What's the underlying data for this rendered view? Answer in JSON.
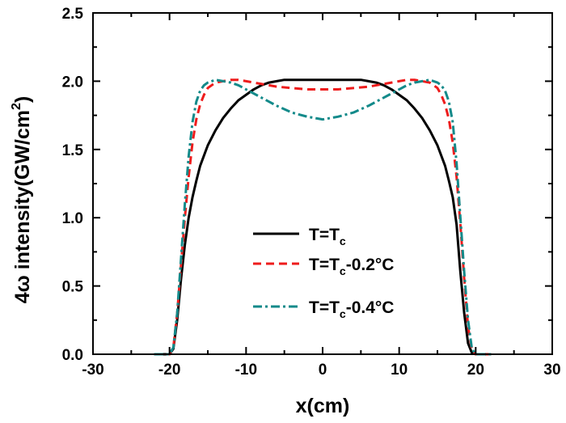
{
  "chart_data": {
    "type": "line",
    "xlabel": "x(cm)",
    "ylabel_parts": {
      "prefix": "4",
      "omega": "ω",
      "middle": " intensity(GW/cm",
      "superscript": "2",
      "suffix": ")"
    },
    "xlim": [
      -30,
      30
    ],
    "ylim": [
      0,
      2.5
    ],
    "xticks": [
      -30,
      -20,
      -10,
      0,
      10,
      20,
      30
    ],
    "yticks": [
      0.0,
      0.5,
      1.0,
      1.5,
      2.0,
      2.5
    ],
    "xtick_labels": [
      "-30",
      "-20",
      "-10",
      "0",
      "10",
      "20",
      "30"
    ],
    "ytick_labels": [
      "0.0",
      "0.5",
      "1.0",
      "1.5",
      "2.0",
      "2.5"
    ],
    "grid": false,
    "legend_position": "center-right",
    "series": [
      {
        "legend": {
          "base": "T=T",
          "sub": "c",
          "tail": ""
        },
        "color": "#000000",
        "dash": "solid",
        "x": [
          -22,
          -20,
          -19.5,
          -19,
          -18.5,
          -18,
          -17.5,
          -17,
          -16.5,
          -16,
          -15,
          -14,
          -13,
          -12,
          -11,
          -10,
          -9,
          -8,
          -7,
          -6,
          -5,
          -4,
          -3,
          -2,
          -1,
          0,
          1,
          2,
          3,
          4,
          5,
          6,
          7,
          8,
          9,
          10,
          11,
          12,
          13,
          14,
          15,
          16,
          16.5,
          17,
          17.5,
          18,
          18.5,
          19,
          19.5,
          20,
          22
        ],
        "y": [
          0,
          0,
          0.04,
          0.25,
          0.55,
          0.8,
          1.0,
          1.15,
          1.27,
          1.38,
          1.53,
          1.64,
          1.73,
          1.8,
          1.86,
          1.9,
          1.94,
          1.97,
          1.99,
          2.0,
          2.01,
          2.01,
          2.01,
          2.01,
          2.01,
          2.01,
          2.01,
          2.01,
          2.01,
          2.01,
          2.01,
          2.0,
          1.99,
          1.97,
          1.94,
          1.9,
          1.86,
          1.8,
          1.73,
          1.64,
          1.53,
          1.38,
          1.27,
          1.15,
          0.95,
          0.6,
          0.3,
          0.08,
          0.01,
          0,
          0
        ]
      },
      {
        "legend": {
          "base": "T=T",
          "sub": "c",
          "tail": "-0.2°C"
        },
        "color": "#ee1c1c",
        "dash": "dashed",
        "x": [
          -22,
          -20,
          -19.5,
          -19,
          -18.5,
          -18,
          -17.5,
          -17,
          -16.5,
          -16,
          -15.5,
          -15,
          -14,
          -13,
          -12,
          -11,
          -10,
          -9,
          -8,
          -6,
          -4,
          -2,
          0,
          2,
          4,
          6,
          8,
          9,
          10,
          11,
          12,
          13,
          14,
          15,
          15.5,
          16,
          16.5,
          17,
          17.5,
          18,
          18.5,
          19,
          19.5,
          20,
          22
        ],
        "y": [
          0,
          0,
          0.05,
          0.3,
          0.65,
          1.0,
          1.3,
          1.55,
          1.72,
          1.83,
          1.9,
          1.95,
          1.99,
          2.0,
          2.01,
          2.01,
          2.0,
          1.99,
          1.98,
          1.96,
          1.95,
          1.94,
          1.94,
          1.94,
          1.95,
          1.96,
          1.98,
          1.99,
          2.0,
          2.01,
          2.01,
          2.0,
          1.99,
          1.95,
          1.9,
          1.83,
          1.72,
          1.55,
          1.3,
          0.95,
          0.55,
          0.2,
          0.03,
          0,
          0
        ]
      },
      {
        "legend": {
          "base": "T=T",
          "sub": "c",
          "tail": "-0.4°C"
        },
        "color": "#138a8a",
        "dash": "dashdot",
        "x": [
          -22,
          -20,
          -19.5,
          -19,
          -18.5,
          -18,
          -17.5,
          -17,
          -16.5,
          -16,
          -15.5,
          -15,
          -14.5,
          -14,
          -13,
          -12,
          -11,
          -10,
          -8,
          -6,
          -4,
          -2,
          0,
          2,
          4,
          6,
          8,
          10,
          11,
          12,
          13,
          14,
          14.5,
          15,
          15.5,
          16,
          16.5,
          17,
          17.5,
          18,
          18.5,
          19,
          19.5,
          20,
          22
        ],
        "y": [
          0,
          0,
          0.05,
          0.3,
          0.7,
          1.1,
          1.45,
          1.7,
          1.85,
          1.93,
          1.97,
          1.99,
          2.0,
          2.01,
          2.0,
          1.99,
          1.97,
          1.94,
          1.88,
          1.82,
          1.77,
          1.74,
          1.72,
          1.74,
          1.77,
          1.82,
          1.88,
          1.94,
          1.97,
          1.99,
          2.0,
          2.01,
          2.0,
          1.99,
          1.97,
          1.93,
          1.85,
          1.7,
          1.4,
          1.0,
          0.6,
          0.25,
          0.04,
          0,
          0
        ]
      }
    ]
  }
}
